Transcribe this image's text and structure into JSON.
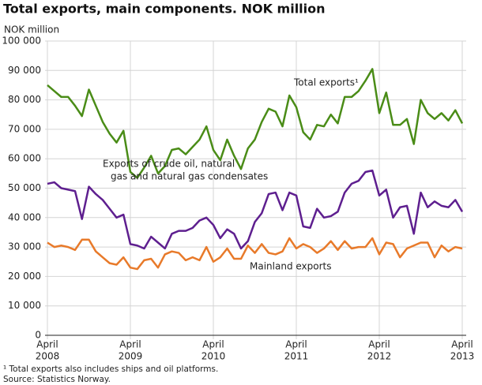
{
  "chart_data": {
    "type": "line",
    "title": "Total exports, main components. NOK million",
    "ylabel": "NOK million",
    "categories": [
      [
        "April",
        "2008"
      ],
      null,
      null,
      null,
      null,
      null,
      null,
      null,
      null,
      null,
      null,
      null,
      [
        "April",
        "2009"
      ],
      null,
      null,
      null,
      null,
      null,
      null,
      null,
      null,
      null,
      null,
      null,
      [
        "April",
        "2010"
      ],
      null,
      null,
      null,
      null,
      null,
      null,
      null,
      null,
      null,
      null,
      null,
      [
        "April",
        "2011"
      ],
      null,
      null,
      null,
      null,
      null,
      null,
      null,
      null,
      null,
      null,
      null,
      [
        "April",
        "2012"
      ],
      null,
      null,
      null,
      null,
      null,
      null,
      null,
      null,
      null,
      null,
      null,
      [
        "April",
        "2013"
      ]
    ],
    "series": [
      {
        "name": "Total exports¹",
        "color": "#4a8c17",
        "values": [
          85000,
          83000,
          81000,
          81000,
          78000,
          74500,
          83500,
          78000,
          72500,
          68500,
          65500,
          69500,
          55500,
          53500,
          57000,
          61000,
          55000,
          57500,
          63000,
          63500,
          61500,
          64000,
          66500,
          71000,
          63000,
          59500,
          66500,
          61000,
          56500,
          63500,
          66500,
          72500,
          77000,
          76000,
          71000,
          81500,
          77500,
          69000,
          66500,
          71500,
          71000,
          75000,
          72000,
          81000,
          81000,
          83000,
          86500,
          90500,
          75500,
          82500,
          71500,
          71500,
          73500,
          65000,
          80000,
          75500,
          73500,
          75500,
          73000,
          76500,
          72000
        ]
      },
      {
        "name": [
          "Exports of crude oil, natural",
          "gas and natural gas condensates"
        ],
        "color": "#5e1f8f",
        "values": [
          51500,
          52000,
          50000,
          49500,
          49000,
          39500,
          50500,
          48000,
          46000,
          43000,
          40000,
          41000,
          31000,
          30500,
          29500,
          33500,
          31500,
          29500,
          34500,
          35500,
          35500,
          36500,
          39000,
          40000,
          37500,
          33000,
          36000,
          34500,
          29500,
          32000,
          38500,
          41500,
          48000,
          48500,
          42500,
          48500,
          47500,
          37000,
          36500,
          43000,
          40000,
          40500,
          42000,
          48500,
          51500,
          52500,
          55500,
          56000,
          47500,
          49500,
          40000,
          43500,
          44000,
          34500,
          48500,
          43500,
          45500,
          44000,
          43500,
          46000,
          42000
        ]
      },
      {
        "name": "Mainland exports",
        "color": "#e87a2a",
        "values": [
          31500,
          30000,
          30500,
          30000,
          29000,
          32500,
          32500,
          28500,
          26500,
          24500,
          24000,
          26500,
          23000,
          22500,
          25500,
          26000,
          23000,
          27500,
          28500,
          28000,
          25500,
          26500,
          25500,
          30000,
          25000,
          26500,
          29500,
          26000,
          26000,
          30500,
          28000,
          31000,
          28000,
          27500,
          28500,
          33000,
          29500,
          31000,
          30000,
          28000,
          29500,
          32000,
          29000,
          32000,
          29500,
          30000,
          30000,
          33000,
          27500,
          31500,
          31000,
          26500,
          29500,
          30500,
          31500,
          31500,
          26500,
          30500,
          28500,
          30000,
          29500
        ]
      }
    ],
    "ylim": [
      0,
      100000
    ],
    "yticks": [
      0,
      {
        "value": 10000,
        "label": "10 000"
      },
      {
        "value": 20000,
        "label": "20 000"
      },
      {
        "value": 30000,
        "label": "30 000"
      },
      {
        "value": 40000,
        "label": "40 000"
      },
      {
        "value": 50000,
        "label": "50 000"
      },
      {
        "value": 60000,
        "label": "60 000"
      },
      {
        "value": 70000,
        "label": "70 000"
      },
      {
        "value": 80000,
        "label": "80 000"
      },
      {
        "value": 90000,
        "label": "90 000"
      },
      {
        "value": 100000,
        "label": "100 000"
      }
    ],
    "grid": true,
    "footnotes": [
      "¹ Total exports also includes ships and oil platforms.",
      "Source: Statistics Norway."
    ]
  }
}
